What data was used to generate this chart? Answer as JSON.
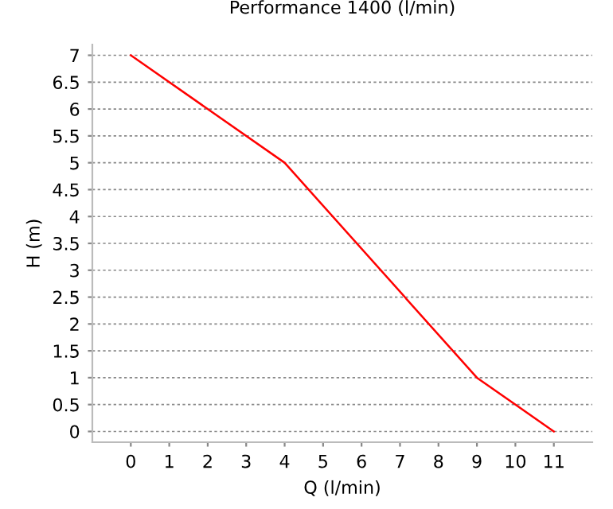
{
  "chart_data": {
    "type": "line",
    "title": "Performance 1400 (l/min)",
    "xlabel": "Q (l/min)",
    "ylabel": "H (m)",
    "x": [
      0,
      4,
      9,
      11
    ],
    "series": [
      {
        "color": "#ff0000",
        "values": [
          7,
          5,
          1,
          0
        ]
      }
    ],
    "xlim": [
      -1,
      12
    ],
    "xticks": [
      0,
      1,
      2,
      3,
      4,
      5,
      6,
      7,
      8,
      9,
      10,
      11
    ],
    "ylim": [
      -0.2,
      7.2
    ],
    "yticks": [
      0,
      0.5,
      1,
      1.5,
      2,
      2.5,
      3,
      3.5,
      4,
      4.5,
      5,
      5.5,
      6,
      6.5,
      7
    ],
    "grid": "y",
    "legend": false,
    "marker": "none",
    "line_style": "solid"
  }
}
